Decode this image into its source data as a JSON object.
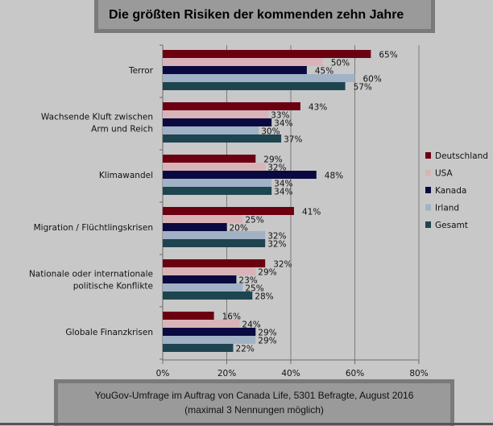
{
  "chart_data": {
    "type": "bar",
    "orientation": "horizontal",
    "title": "Die größten Risiken der kommenden zehn Jahre",
    "footnote": [
      "YouGov-Umfrage im Auftrag von Canada Life, 5301 Befragte, August 2016",
      "(maximal 3 Nennungen möglich)"
    ],
    "categories": [
      [
        "Terror"
      ],
      [
        "Wachsende Kluft zwischen",
        "Arm und Reich"
      ],
      [
        "Klimawandel"
      ],
      [
        "Migration / Flüchtlingskrisen"
      ],
      [
        "Nationale oder internationale",
        "politische Konflikte"
      ],
      [
        "Globale Finanzkrisen"
      ]
    ],
    "series": [
      {
        "name": "Deutschland",
        "color": "#6b0010",
        "values": [
          65,
          43,
          29,
          41,
          32,
          16
        ]
      },
      {
        "name": "USA",
        "color": "#d8b4b8",
        "values": [
          50,
          33,
          32,
          25,
          29,
          24
        ]
      },
      {
        "name": "Kanada",
        "color": "#0a0a40",
        "values": [
          45,
          34,
          48,
          20,
          23,
          29
        ]
      },
      {
        "name": "Irland",
        "color": "#a2b2c6",
        "values": [
          60,
          30,
          34,
          32,
          25,
          29
        ]
      },
      {
        "name": "Gesamt",
        "color": "#1e4450",
        "values": [
          57,
          37,
          34,
          32,
          28,
          22
        ]
      }
    ],
    "xlim": [
      0,
      80
    ],
    "xticks": [
      "0%",
      "20%",
      "40%",
      "60%",
      "80%"
    ],
    "value_suffix": "%",
    "grid": true,
    "legend": "right"
  }
}
